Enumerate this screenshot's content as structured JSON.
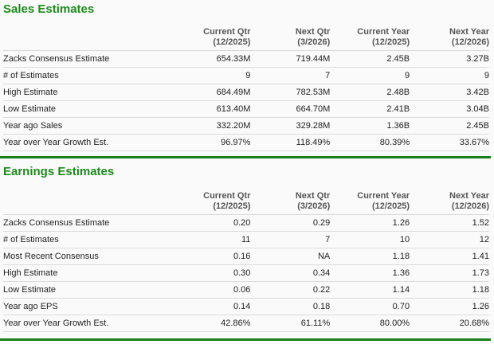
{
  "sales": {
    "title": "Sales Estimates",
    "columns": [
      {
        "label": "",
        "period": ""
      },
      {
        "label": "Current Qtr",
        "period": "(12/2025)"
      },
      {
        "label": "Next Qtr",
        "period": "(3/2026)"
      },
      {
        "label": "Current Year",
        "period": "(12/2025)"
      },
      {
        "label": "Next Year",
        "period": "(12/2026)"
      }
    ],
    "rows": [
      {
        "label": "Zacks Consensus Estimate",
        "values": [
          "654.33M",
          "719.44M",
          "2.45B",
          "3.27B"
        ]
      },
      {
        "label": "# of Estimates",
        "values": [
          "9",
          "7",
          "9",
          "9"
        ]
      },
      {
        "label": "High Estimate",
        "values": [
          "684.49M",
          "782.53M",
          "2.48B",
          "3.42B"
        ]
      },
      {
        "label": "Low Estimate",
        "values": [
          "613.40M",
          "664.70M",
          "2.41B",
          "3.04B"
        ]
      },
      {
        "label": "Year ago Sales",
        "values": [
          "332.20M",
          "329.28M",
          "1.36B",
          "2.45B"
        ]
      },
      {
        "label": "Year over Year Growth Est.",
        "values": [
          "96.97%",
          "118.49%",
          "80.39%",
          "33.67%"
        ]
      }
    ]
  },
  "earnings": {
    "title": "Earnings Estimates",
    "columns": [
      {
        "label": "",
        "period": ""
      },
      {
        "label": "Current Qtr",
        "period": "(12/2025)"
      },
      {
        "label": "Next Qtr",
        "period": "(3/2026)"
      },
      {
        "label": "Current Year",
        "period": "(12/2025)"
      },
      {
        "label": "Next Year",
        "period": "(12/2026)"
      }
    ],
    "rows": [
      {
        "label": "Zacks Consensus Estimate",
        "values": [
          "0.20",
          "0.29",
          "1.26",
          "1.52"
        ]
      },
      {
        "label": "# of Estimates",
        "values": [
          "11",
          "7",
          "10",
          "12"
        ]
      },
      {
        "label": "Most Recent Consensus",
        "values": [
          "0.16",
          "NA",
          "1.18",
          "1.41"
        ]
      },
      {
        "label": "High Estimate",
        "values": [
          "0.30",
          "0.34",
          "1.36",
          "1.73"
        ]
      },
      {
        "label": "Low Estimate",
        "values": [
          "0.06",
          "0.22",
          "1.14",
          "1.18"
        ]
      },
      {
        "label": "Year ago EPS",
        "values": [
          "0.14",
          "0.18",
          "0.70",
          "1.26"
        ]
      },
      {
        "label": "Year over Year Growth Est.",
        "values": [
          "42.86%",
          "61.11%",
          "80.00%",
          "20.68%"
        ]
      }
    ]
  },
  "colors": {
    "title_green": "#1e8a1e",
    "divider_green": "#1a7f1a",
    "header_text": "#555555",
    "row_border": "#dcdcdc"
  }
}
